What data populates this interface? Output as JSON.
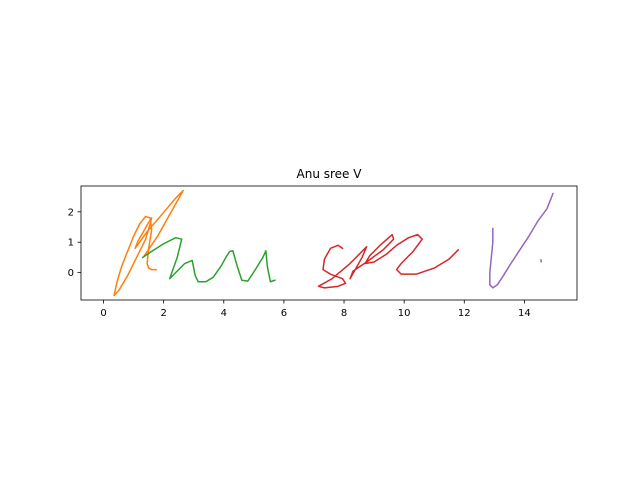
{
  "chart_data": {
    "type": "line",
    "title": "Anu sree V",
    "xlabel": "",
    "ylabel": "",
    "xlim": [
      -0.75,
      15.75
    ],
    "ylim": [
      -0.9,
      2.85
    ],
    "xticks": [
      0,
      2,
      4,
      6,
      8,
      10,
      12,
      14
    ],
    "yticks": [
      0,
      1,
      2
    ],
    "grid": false,
    "legend": "none",
    "series": [
      {
        "color": "#ff7f0e",
        "x": [
          1.75,
          1.6,
          1.5,
          1.45,
          1.5,
          1.6,
          1.55,
          1.4,
          1.2,
          1.0,
          0.8,
          0.6,
          0.45,
          0.35,
          0.5,
          0.8,
          1.1,
          1.4,
          1.55,
          1.6,
          1.5,
          1.3,
          1.15,
          1.05,
          1.2,
          1.45,
          1.8,
          2.1,
          2.4,
          2.65,
          2.25,
          1.8,
          1.35
        ],
        "y": [
          0.1,
          0.1,
          0.15,
          0.3,
          0.8,
          1.4,
          1.8,
          1.85,
          1.6,
          1.2,
          0.7,
          0.2,
          -0.3,
          -0.75,
          -0.6,
          -0.1,
          0.5,
          1.1,
          1.6,
          1.8,
          1.65,
          1.3,
          1.05,
          0.8,
          1.0,
          1.35,
          1.75,
          2.1,
          2.45,
          2.7,
          2.0,
          1.2,
          0.55
        ]
      },
      {
        "color": "#2ca02c",
        "x": [
          1.3,
          1.6,
          2.0,
          2.4,
          2.6,
          2.45,
          2.2,
          2.4,
          2.7,
          2.95,
          3.05,
          3.15,
          3.4,
          3.65,
          3.9,
          4.1,
          4.2,
          4.3,
          4.45,
          4.6,
          4.8,
          5.05,
          5.3,
          5.4,
          5.45,
          5.55,
          5.7
        ],
        "y": [
          0.5,
          0.7,
          0.95,
          1.15,
          1.1,
          0.5,
          -0.2,
          0.0,
          0.3,
          0.4,
          -0.1,
          -0.3,
          -0.3,
          -0.15,
          0.2,
          0.55,
          0.7,
          0.72,
          0.2,
          -0.25,
          -0.28,
          0.1,
          0.5,
          0.72,
          0.2,
          -0.3,
          -0.25
        ]
      },
      {
        "color": "#d62728",
        "x": [
          7.95,
          7.8,
          7.55,
          7.35,
          7.3,
          7.55,
          7.95,
          8.05,
          7.8,
          7.35,
          7.15,
          7.6,
          8.2,
          8.75,
          8.6,
          8.2,
          8.3,
          8.75,
          9.3,
          9.65,
          9.6,
          9.2,
          8.85,
          8.7,
          9.0,
          9.4,
          9.75,
          10.15,
          10.45,
          10.6,
          10.3,
          9.9,
          9.75,
          9.9,
          10.4,
          11.0,
          11.5,
          11.8
        ],
        "y": [
          0.8,
          0.9,
          0.8,
          0.45,
          0.1,
          -0.05,
          -0.2,
          -0.35,
          -0.45,
          -0.5,
          -0.45,
          -0.2,
          0.3,
          0.85,
          0.5,
          -0.2,
          0.05,
          0.35,
          0.75,
          1.1,
          1.25,
          0.9,
          0.55,
          0.3,
          0.35,
          0.6,
          0.9,
          1.15,
          1.25,
          1.1,
          0.7,
          0.3,
          0.1,
          -0.05,
          -0.05,
          0.15,
          0.45,
          0.75
        ]
      },
      {
        "color": "#9467bd",
        "x": [
          12.95,
          12.95,
          12.9,
          12.85,
          12.85,
          12.95,
          13.1,
          13.3,
          13.55,
          13.85,
          14.15,
          14.45,
          14.75,
          14.95
        ],
        "y": [
          1.45,
          1.0,
          0.5,
          0.0,
          -0.4,
          -0.5,
          -0.4,
          -0.1,
          0.3,
          0.75,
          1.2,
          1.7,
          2.1,
          2.6
        ]
      },
      {
        "color": "#9467bd",
        "x": [
          14.55,
          14.56
        ],
        "y": [
          0.42,
          0.36
        ]
      }
    ]
  }
}
